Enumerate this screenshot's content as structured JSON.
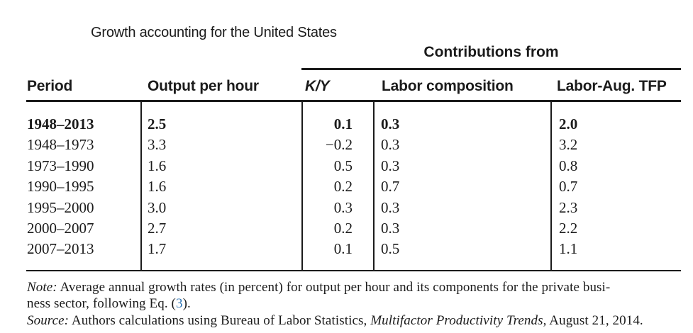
{
  "title": "Growth accounting for the United States",
  "table": {
    "group_header": "Contributions from",
    "columns": [
      "Period",
      "Output per hour",
      "K/Y",
      "Labor composition",
      "Labor-Aug. TFP"
    ],
    "rows": [
      {
        "period": "1948–2013",
        "output": "2.5",
        "ky": "0.1",
        "comp": "0.3",
        "tfp": "2.0"
      },
      {
        "period": "1948–1973",
        "output": "3.3",
        "ky": "−0.2",
        "comp": "0.3",
        "tfp": "3.2"
      },
      {
        "period": "1973–1990",
        "output": "1.6",
        "ky": "0.5",
        "comp": "0.3",
        "tfp": "0.8"
      },
      {
        "period": "1990–1995",
        "output": "1.6",
        "ky": "0.2",
        "comp": "0.7",
        "tfp": "0.7"
      },
      {
        "period": "1995–2000",
        "output": "3.0",
        "ky": "0.3",
        "comp": "0.3",
        "tfp": "2.3"
      },
      {
        "period": "2000–2007",
        "output": "2.7",
        "ky": "0.2",
        "comp": "0.3",
        "tfp": "2.2"
      },
      {
        "period": "2007–2013",
        "output": "1.7",
        "ky": "0.1",
        "comp": "0.5",
        "tfp": "1.1"
      }
    ]
  },
  "notes": {
    "note_label": "Note:",
    "note_line1": " Average annual growth rates (in percent) for output per hour and its components for the private busi-",
    "note_line2_pre": "ness sector, following Eq. (",
    "eq_ref": "3",
    "note_line2_post": ").",
    "source_label": "Source:",
    "source_pre": " Authors calculations using Bureau of Labor Statistics, ",
    "source_italic": "Multifactor Productivity Trends",
    "source_post": ", August 21, 2014."
  },
  "colors": {
    "text": "#1b1b1b",
    "link_blue": "#2e75b6",
    "background": "#ffffff"
  }
}
